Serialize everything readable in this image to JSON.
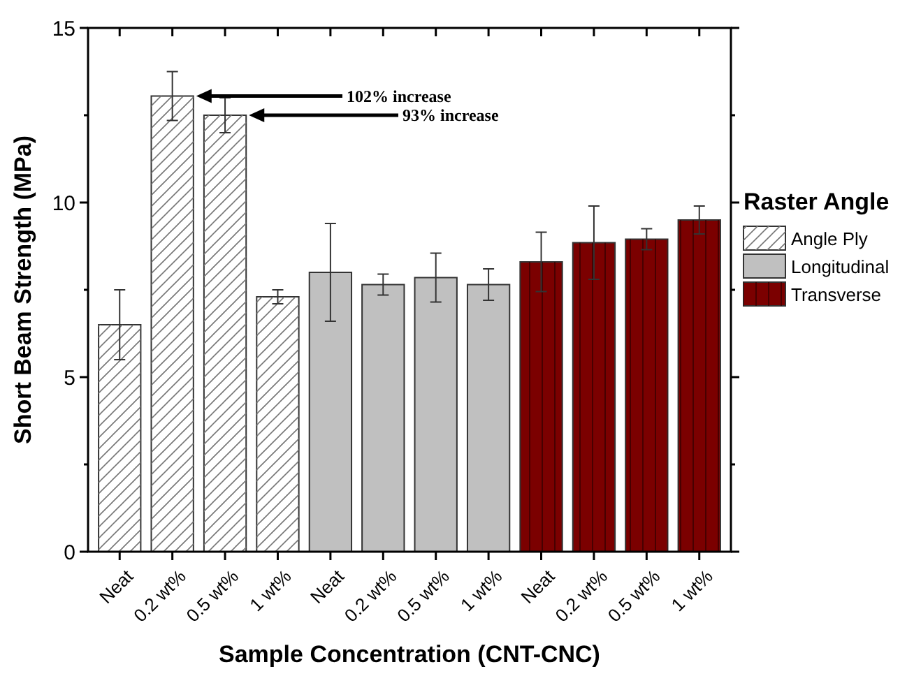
{
  "chart_data": {
    "type": "bar",
    "xlabel": "Sample Concentration (CNT-CNC)",
    "ylabel": "Short Beam Strength (MPa)",
    "legend_title": "Raster Angle",
    "legend": "right",
    "grid": false,
    "categories": [
      "Neat",
      "0.2 wt%",
      "0.5 wt%",
      "1 wt%",
      "Neat",
      "0.2 wt%",
      "0.5 wt%",
      "1 wt%",
      "Neat",
      "0.2 wt%",
      "0.5 wt%",
      "1 wt%"
    ],
    "ylim": [
      0,
      15
    ],
    "yticks": [
      0,
      {
        "value": 2.5,
        "label": null
      },
      5,
      {
        "value": 7.5,
        "label": null
      },
      10,
      {
        "value": 12.5,
        "label": null
      },
      15
    ],
    "series": [
      {
        "name": "Angle Ply",
        "color": "#ffffff",
        "values": [
          6.5,
          13.05,
          12.5,
          7.3,
          null,
          null,
          null,
          null,
          null,
          null,
          null,
          null
        ],
        "errors": [
          1.0,
          0.7,
          0.5,
          0.2,
          null,
          null,
          null,
          null,
          null,
          null,
          null,
          null
        ]
      },
      {
        "name": "Longitudinal",
        "color": "#c0c0c0",
        "values": [
          null,
          null,
          null,
          null,
          8.0,
          7.65,
          7.85,
          7.65,
          null,
          null,
          null,
          null
        ],
        "errors": [
          null,
          null,
          null,
          null,
          1.4,
          0.3,
          0.7,
          0.45,
          null,
          null,
          null,
          null
        ]
      },
      {
        "name": "Transverse",
        "color": "#7b0000",
        "values": [
          null,
          null,
          null,
          null,
          null,
          null,
          null,
          null,
          8.3,
          8.85,
          8.95,
          9.5
        ],
        "errors": [
          null,
          null,
          null,
          null,
          null,
          null,
          null,
          null,
          0.85,
          1.05,
          0.3,
          0.4
        ]
      }
    ],
    "annotations": [
      "102% increase",
      "93% increase"
    ]
  }
}
